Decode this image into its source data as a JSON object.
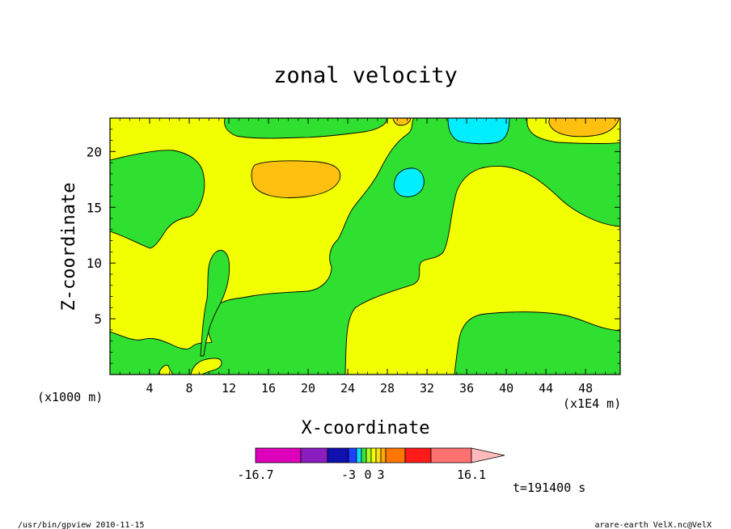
{
  "chart_data": {
    "type": "contour",
    "title": "zonal velocity",
    "xlabel": "X-coordinate",
    "ylabel": "Z-coordinate",
    "x_unit_left": "(x1000 m)",
    "x_unit_right": "(x1E4 m)",
    "xlim": [
      0,
      51.5
    ],
    "ylim": [
      0,
      23
    ],
    "x_ticks": [
      "4",
      "8",
      "12",
      "16",
      "20",
      "24",
      "28",
      "32",
      "36",
      "40",
      "44",
      "48"
    ],
    "x_tick_values": [
      4,
      8,
      12,
      16,
      20,
      24,
      28,
      32,
      36,
      40,
      44,
      48
    ],
    "y_ticks": [
      "5",
      "10",
      "15",
      "20"
    ],
    "y_tick_values": [
      5,
      10,
      15,
      20
    ],
    "time_label": "t=191400 s",
    "colorbar": {
      "labels": [
        "-16.7",
        "-3",
        "0",
        "3",
        "16.1"
      ],
      "colors": [
        "#dd00bb",
        "#8a1cc0",
        "#1010b0",
        "#2040ff",
        "#00e0ff",
        "#40e040",
        "#a8ff20",
        "#f2ff00",
        "#ffdd22",
        "#ffaa00",
        "#ff7700",
        "#ff1a1a",
        "#ff7070",
        "#ffbbbb"
      ]
    },
    "fill_colors": {
      "neutral": "#f2ff00",
      "weak_negative": "#30e030",
      "moderate_negative": "#00eeff",
      "moderate_positive": "#ffc010"
    }
  },
  "footer": {
    "left": "/usr/bin/gpview   2010-11-15",
    "right": "arare-earth_VelX.nc@VelX"
  }
}
